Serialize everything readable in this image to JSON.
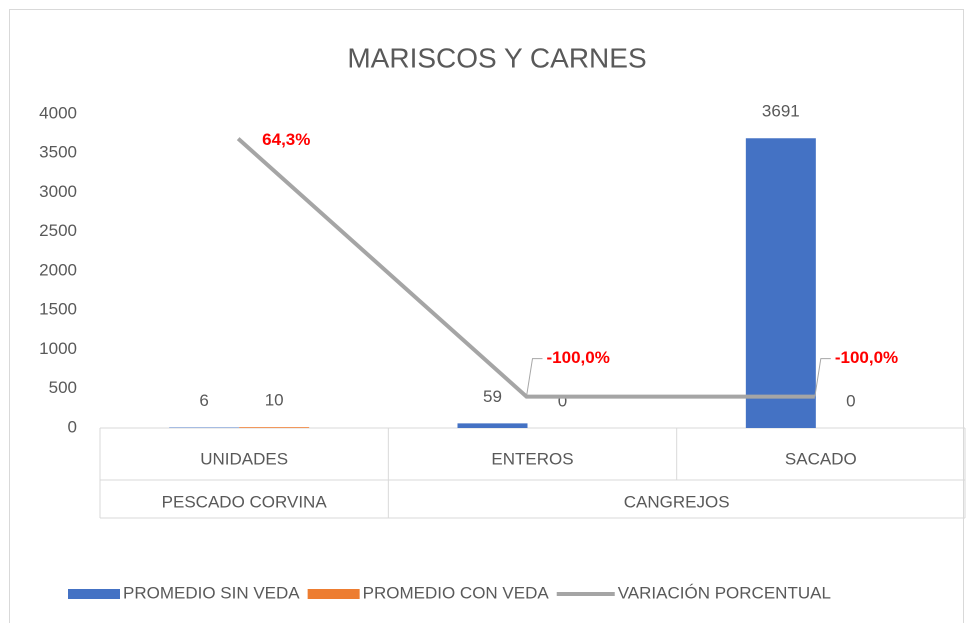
{
  "chart_data": {
    "type": "bar",
    "title": "MARISCOS Y CARNES",
    "categories": [
      "UNIDADES",
      "ENTEROS",
      "SACADO"
    ],
    "category_groups": [
      {
        "name": "PESCADO CORVINA",
        "span": 1
      },
      {
        "name": "CANGREJOS",
        "span": 2
      }
    ],
    "series": [
      {
        "name": "PROMEDIO SIN VEDA",
        "type": "bar",
        "color": "#4472c4",
        "values": [
          6,
          59,
          3691
        ]
      },
      {
        "name": "PROMEDIO CON VEDA",
        "type": "bar",
        "color": "#ed7d31",
        "values": [
          10,
          0,
          0
        ]
      },
      {
        "name": "VARIACIÓN PORCENTUAL",
        "type": "line",
        "axis": "y2",
        "color": "#a5a5a5",
        "values": [
          64.3,
          -100,
          -100
        ],
        "value_labels": [
          "64,3%",
          "-100,0%",
          "-100,0%"
        ]
      }
    ],
    "ylim": [
      0,
      4000
    ],
    "yticks": [
      0,
      500,
      1000,
      1500,
      2000,
      2500,
      3000,
      3500,
      4000
    ],
    "y2lim": [
      -120,
      80
    ],
    "legend": "bottom"
  }
}
